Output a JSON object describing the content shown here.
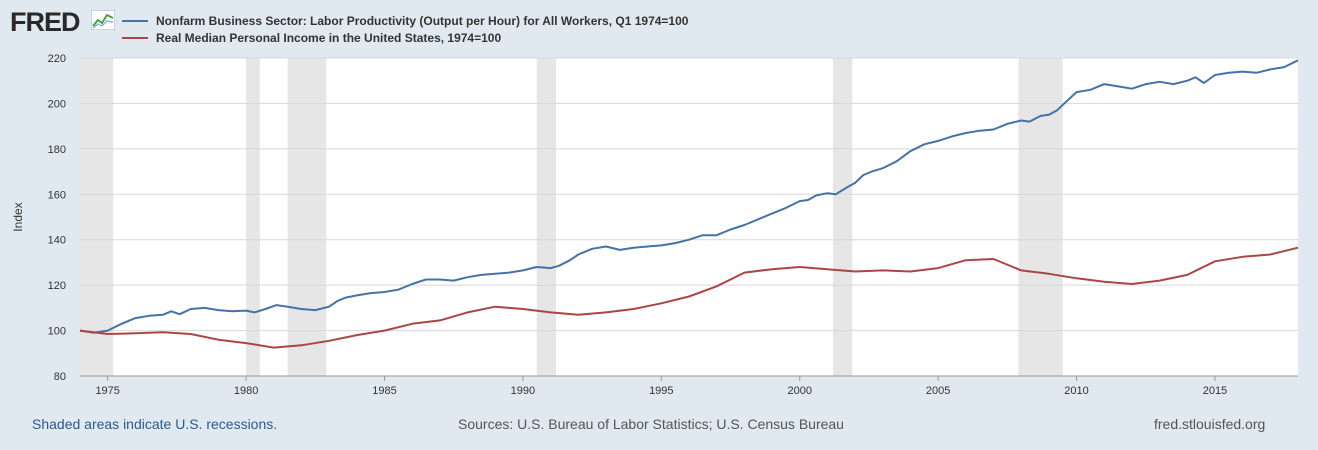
{
  "brand": {
    "logo_text": "FRED",
    "icon": "line-chart-icon"
  },
  "footer": {
    "note": "Shaded areas indicate U.S. recessions.",
    "sources": "Sources: U.S. Bureau of Labor Statistics; U.S. Census Bureau",
    "site": "fred.stlouisfed.org"
  },
  "chart_data": {
    "type": "line",
    "ylabel": "Index",
    "xlim": [
      1974.0,
      2018.0
    ],
    "ylim": [
      80,
      220
    ],
    "yticks": [
      80,
      100,
      120,
      140,
      160,
      180,
      200,
      220
    ],
    "xticks": [
      1975,
      1980,
      1985,
      1990,
      1995,
      2000,
      2005,
      2010,
      2015
    ],
    "grid": true,
    "legend_position": "top-left",
    "recessions": [
      [
        1974.0,
        1975.2
      ],
      [
        1980.0,
        1980.5
      ],
      [
        1981.5,
        1982.9
      ],
      [
        1990.5,
        1991.2
      ],
      [
        2001.2,
        2001.9
      ],
      [
        2007.9,
        2009.5
      ]
    ],
    "series": [
      {
        "name": "Nonfarm Business Sector: Labor Productivity (Output per Hour) for All Workers, Q1 1974=100",
        "color": "#4572a7",
        "points": [
          [
            1974.0,
            100.0
          ],
          [
            1974.5,
            99.0
          ],
          [
            1975.0,
            100.0
          ],
          [
            1975.5,
            103.0
          ],
          [
            1976.0,
            105.5
          ],
          [
            1976.5,
            106.5
          ],
          [
            1977.0,
            107.0
          ],
          [
            1977.3,
            108.5
          ],
          [
            1977.6,
            107.2
          ],
          [
            1978.0,
            109.5
          ],
          [
            1978.5,
            110.0
          ],
          [
            1979.0,
            109.0
          ],
          [
            1979.5,
            108.5
          ],
          [
            1980.0,
            108.8
          ],
          [
            1980.3,
            108.0
          ],
          [
            1980.7,
            109.5
          ],
          [
            1981.1,
            111.2
          ],
          [
            1981.5,
            110.5
          ],
          [
            1982.0,
            109.5
          ],
          [
            1982.5,
            109.0
          ],
          [
            1983.0,
            110.5
          ],
          [
            1983.3,
            113.0
          ],
          [
            1983.6,
            114.5
          ],
          [
            1984.0,
            115.5
          ],
          [
            1984.5,
            116.5
          ],
          [
            1985.0,
            117.0
          ],
          [
            1985.5,
            118.0
          ],
          [
            1986.0,
            120.5
          ],
          [
            1986.5,
            122.5
          ],
          [
            1987.0,
            122.5
          ],
          [
            1987.5,
            122.0
          ],
          [
            1988.0,
            123.5
          ],
          [
            1988.5,
            124.5
          ],
          [
            1989.0,
            125.0
          ],
          [
            1989.5,
            125.5
          ],
          [
            1990.0,
            126.5
          ],
          [
            1990.5,
            128.0
          ],
          [
            1991.0,
            127.5
          ],
          [
            1991.3,
            128.5
          ],
          [
            1991.7,
            131.0
          ],
          [
            1992.0,
            133.5
          ],
          [
            1992.5,
            136.0
          ],
          [
            1993.0,
            137.0
          ],
          [
            1993.5,
            135.5
          ],
          [
            1994.0,
            136.5
          ],
          [
            1994.5,
            137.0
          ],
          [
            1995.0,
            137.5
          ],
          [
            1995.5,
            138.5
          ],
          [
            1996.0,
            140.0
          ],
          [
            1996.5,
            142.0
          ],
          [
            1997.0,
            142.0
          ],
          [
            1997.5,
            144.5
          ],
          [
            1998.0,
            146.5
          ],
          [
            1998.5,
            149.0
          ],
          [
            1999.0,
            151.5
          ],
          [
            1999.5,
            154.0
          ],
          [
            2000.0,
            157.0
          ],
          [
            2000.3,
            157.5
          ],
          [
            2000.6,
            159.5
          ],
          [
            2001.0,
            160.5
          ],
          [
            2001.3,
            160.0
          ],
          [
            2001.7,
            163.0
          ],
          [
            2002.0,
            165.0
          ],
          [
            2002.3,
            168.5
          ],
          [
            2002.6,
            170.0
          ],
          [
            2003.0,
            171.5
          ],
          [
            2003.5,
            174.5
          ],
          [
            2004.0,
            179.0
          ],
          [
            2004.5,
            182.0
          ],
          [
            2005.0,
            183.5
          ],
          [
            2005.5,
            185.5
          ],
          [
            2006.0,
            187.0
          ],
          [
            2006.5,
            188.0
          ],
          [
            2007.0,
            188.5
          ],
          [
            2007.5,
            191.0
          ],
          [
            2008.0,
            192.5
          ],
          [
            2008.3,
            192.0
          ],
          [
            2008.7,
            194.5
          ],
          [
            2009.0,
            195.0
          ],
          [
            2009.3,
            197.0
          ],
          [
            2009.6,
            200.5
          ],
          [
            2010.0,
            205.0
          ],
          [
            2010.5,
            206.0
          ],
          [
            2011.0,
            208.5
          ],
          [
            2011.5,
            207.5
          ],
          [
            2012.0,
            206.5
          ],
          [
            2012.5,
            208.5
          ],
          [
            2013.0,
            209.5
          ],
          [
            2013.5,
            208.5
          ],
          [
            2014.0,
            210.0
          ],
          [
            2014.3,
            211.5
          ],
          [
            2014.6,
            209.0
          ],
          [
            2015.0,
            212.5
          ],
          [
            2015.5,
            213.5
          ],
          [
            2016.0,
            214.0
          ],
          [
            2016.5,
            213.5
          ],
          [
            2017.0,
            215.0
          ],
          [
            2017.5,
            216.0
          ],
          [
            2018.0,
            219.0
          ]
        ]
      },
      {
        "name": "Real Median Personal Income in the United States, 1974=100",
        "color": "#aa4643",
        "points": [
          [
            1974.0,
            100.0
          ],
          [
            1975.0,
            98.5
          ],
          [
            1976.0,
            98.8
          ],
          [
            1977.0,
            99.3
          ],
          [
            1978.0,
            98.5
          ],
          [
            1979.0,
            96.0
          ],
          [
            1980.0,
            94.5
          ],
          [
            1981.0,
            92.5
          ],
          [
            1982.0,
            93.5
          ],
          [
            1983.0,
            95.5
          ],
          [
            1984.0,
            98.0
          ],
          [
            1985.0,
            100.0
          ],
          [
            1986.0,
            103.0
          ],
          [
            1987.0,
            104.5
          ],
          [
            1988.0,
            108.0
          ],
          [
            1989.0,
            110.5
          ],
          [
            1990.0,
            109.5
          ],
          [
            1991.0,
            108.0
          ],
          [
            1992.0,
            107.0
          ],
          [
            1993.0,
            108.0
          ],
          [
            1994.0,
            109.5
          ],
          [
            1995.0,
            112.0
          ],
          [
            1996.0,
            115.0
          ],
          [
            1997.0,
            119.5
          ],
          [
            1998.0,
            125.5
          ],
          [
            1999.0,
            127.0
          ],
          [
            2000.0,
            128.0
          ],
          [
            2001.0,
            127.0
          ],
          [
            2002.0,
            126.0
          ],
          [
            2003.0,
            126.5
          ],
          [
            2004.0,
            126.0
          ],
          [
            2005.0,
            127.5
          ],
          [
            2006.0,
            131.0
          ],
          [
            2007.0,
            131.5
          ],
          [
            2008.0,
            126.5
          ],
          [
            2009.0,
            125.0
          ],
          [
            2010.0,
            123.0
          ],
          [
            2011.0,
            121.5
          ],
          [
            2012.0,
            120.5
          ],
          [
            2013.0,
            122.0
          ],
          [
            2014.0,
            124.5
          ],
          [
            2015.0,
            130.5
          ],
          [
            2016.0,
            132.5
          ],
          [
            2017.0,
            133.5
          ],
          [
            2018.0,
            136.5
          ]
        ]
      }
    ]
  }
}
